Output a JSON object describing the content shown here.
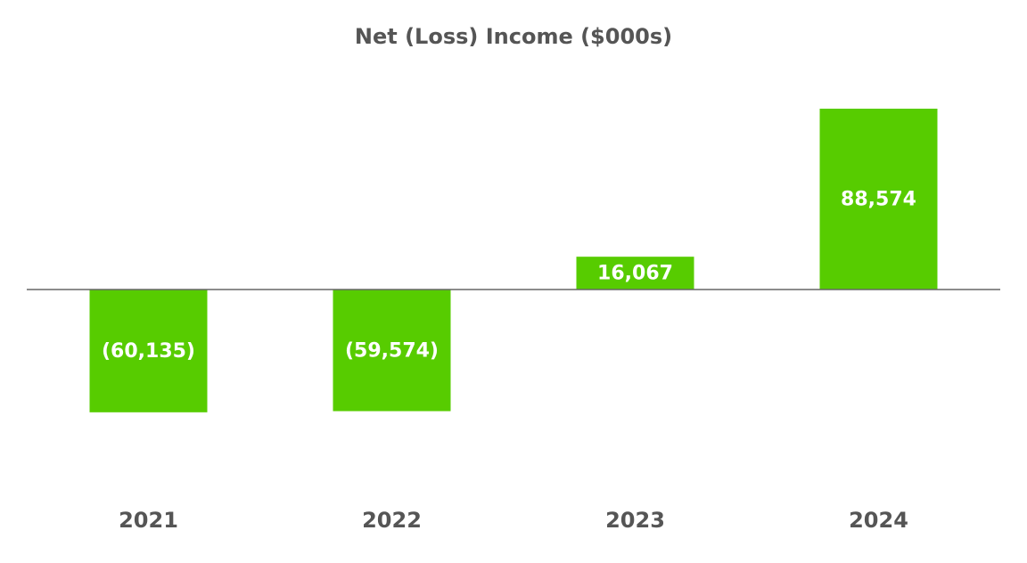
{
  "chart_data": {
    "type": "bar",
    "title": "Net (Loss) Income ($000s)",
    "categories": [
      "2021",
      "2022",
      "2023",
      "2024"
    ],
    "values": [
      -60135,
      -59574,
      16067,
      88574
    ],
    "value_labels": [
      "(60,135)",
      "(59,574)",
      "16,067",
      "88,574"
    ],
    "color": "#57cc00"
  }
}
